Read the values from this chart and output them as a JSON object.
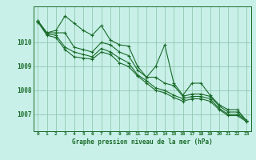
{
  "title": "Graphe pression niveau de la mer (hPa)",
  "background_color": "#c8f0e8",
  "line_color": "#1a6b2a",
  "grid_color": "#90c8b0",
  "x_labels": [
    "0",
    "1",
    "2",
    "3",
    "4",
    "5",
    "6",
    "7",
    "8",
    "9",
    "10",
    "11",
    "12",
    "13",
    "14",
    "15",
    "16",
    "17",
    "18",
    "19",
    "20",
    "21",
    "22",
    "23"
  ],
  "y_ticks": [
    1007,
    1008,
    1009,
    1010
  ],
  "ylim": [
    1006.3,
    1011.5
  ],
  "xlim": [
    -0.5,
    23.5
  ],
  "series": [
    [
      1010.9,
      1010.4,
      1010.5,
      1011.1,
      1010.8,
      1010.5,
      1010.3,
      1010.7,
      1010.1,
      1009.9,
      1009.85,
      1009.0,
      1008.55,
      1009.0,
      1009.9,
      1008.3,
      1007.8,
      1008.3,
      1008.3,
      1007.8,
      1007.4,
      1007.2,
      1007.2,
      1006.75
    ],
    [
      1010.9,
      1010.4,
      1010.4,
      1010.4,
      1009.8,
      1009.7,
      1009.6,
      1010.0,
      1009.9,
      1009.6,
      1009.45,
      1008.85,
      1008.55,
      1008.55,
      1008.3,
      1008.2,
      1007.75,
      1007.85,
      1007.85,
      1007.75,
      1007.35,
      1007.1,
      1007.1,
      1006.75
    ],
    [
      1010.9,
      1010.35,
      1010.3,
      1009.8,
      1009.6,
      1009.5,
      1009.4,
      1009.75,
      1009.6,
      1009.35,
      1009.15,
      1008.65,
      1008.4,
      1008.1,
      1008.0,
      1007.8,
      1007.65,
      1007.75,
      1007.75,
      1007.65,
      1007.25,
      1007.0,
      1007.0,
      1006.75
    ],
    [
      1010.85,
      1010.3,
      1010.2,
      1009.7,
      1009.4,
      1009.35,
      1009.3,
      1009.6,
      1009.5,
      1009.15,
      1009.0,
      1008.6,
      1008.3,
      1008.0,
      1007.9,
      1007.7,
      1007.55,
      1007.65,
      1007.65,
      1007.55,
      1007.2,
      1006.95,
      1006.95,
      1006.7
    ]
  ]
}
